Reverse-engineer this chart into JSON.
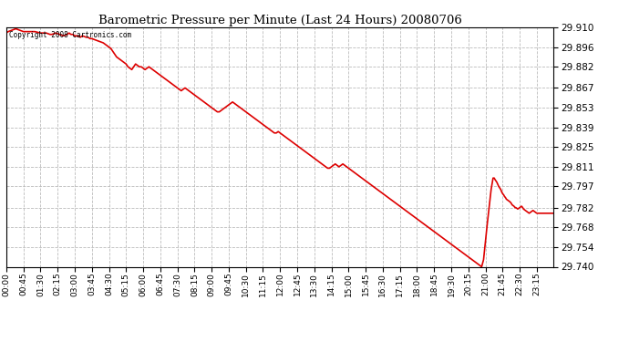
{
  "title": "Barometric Pressure per Minute (Last 24 Hours) 20080706",
  "copyright_text": "Copyright 2008 Cartronics.com",
  "line_color": "#dd0000",
  "background_color": "#ffffff",
  "grid_color": "#bbbbbb",
  "ylim": [
    29.74,
    29.91
  ],
  "yticks": [
    29.91,
    29.896,
    29.882,
    29.867,
    29.853,
    29.839,
    29.825,
    29.811,
    29.797,
    29.782,
    29.768,
    29.754,
    29.74
  ],
  "xtick_labels": [
    "00:00",
    "00:45",
    "01:30",
    "02:15",
    "03:00",
    "03:45",
    "04:30",
    "05:15",
    "06:00",
    "06:45",
    "07:30",
    "08:15",
    "09:00",
    "09:45",
    "10:30",
    "11:15",
    "12:00",
    "12:45",
    "13:30",
    "14:15",
    "15:00",
    "15:45",
    "16:30",
    "17:15",
    "18:00",
    "18:45",
    "19:30",
    "20:15",
    "21:00",
    "21:45",
    "22:30",
    "23:15"
  ],
  "x_values": [
    0,
    45,
    90,
    135,
    180,
    225,
    270,
    315,
    360,
    405,
    450,
    495,
    540,
    585,
    630,
    675,
    720,
    765,
    810,
    855,
    900,
    945,
    990,
    1035,
    1080,
    1125,
    1170,
    1215,
    1260,
    1305,
    1350,
    1395
  ],
  "pressure_data": [
    [
      0,
      29.906
    ],
    [
      5,
      29.907
    ],
    [
      15,
      29.908
    ],
    [
      25,
      29.909
    ],
    [
      35,
      29.908
    ],
    [
      45,
      29.907
    ],
    [
      60,
      29.907
    ],
    [
      75,
      29.907
    ],
    [
      90,
      29.906
    ],
    [
      105,
      29.906
    ],
    [
      115,
      29.905
    ],
    [
      120,
      29.905
    ],
    [
      130,
      29.906
    ],
    [
      140,
      29.905
    ],
    [
      150,
      29.904
    ],
    [
      160,
      29.905
    ],
    [
      165,
      29.906
    ],
    [
      170,
      29.905
    ],
    [
      175,
      29.905
    ],
    [
      180,
      29.904
    ],
    [
      185,
      29.904
    ],
    [
      195,
      29.903
    ],
    [
      200,
      29.904
    ],
    [
      210,
      29.903
    ],
    [
      215,
      29.903
    ],
    [
      220,
      29.902
    ],
    [
      225,
      29.902
    ],
    [
      235,
      29.901
    ],
    [
      245,
      29.9
    ],
    [
      255,
      29.899
    ],
    [
      260,
      29.898
    ],
    [
      265,
      29.897
    ],
    [
      270,
      29.896
    ],
    [
      275,
      29.895
    ],
    [
      280,
      29.893
    ],
    [
      285,
      29.891
    ],
    [
      290,
      29.889
    ],
    [
      300,
      29.887
    ],
    [
      305,
      29.886
    ],
    [
      310,
      29.885
    ],
    [
      315,
      29.884
    ],
    [
      320,
      29.882
    ],
    [
      325,
      29.881
    ],
    [
      330,
      29.88
    ],
    [
      335,
      29.882
    ],
    [
      340,
      29.884
    ],
    [
      345,
      29.883
    ],
    [
      350,
      29.882
    ],
    [
      355,
      29.882
    ],
    [
      360,
      29.881
    ],
    [
      365,
      29.88
    ],
    [
      370,
      29.881
    ],
    [
      375,
      29.882
    ],
    [
      380,
      29.881
    ],
    [
      385,
      29.88
    ],
    [
      390,
      29.879
    ],
    [
      395,
      29.878
    ],
    [
      400,
      29.877
    ],
    [
      405,
      29.876
    ],
    [
      410,
      29.875
    ],
    [
      415,
      29.874
    ],
    [
      420,
      29.873
    ],
    [
      425,
      29.872
    ],
    [
      430,
      29.871
    ],
    [
      435,
      29.87
    ],
    [
      440,
      29.869
    ],
    [
      445,
      29.868
    ],
    [
      450,
      29.867
    ],
    [
      455,
      29.866
    ],
    [
      460,
      29.865
    ],
    [
      465,
      29.866
    ],
    [
      470,
      29.867
    ],
    [
      475,
      29.866
    ],
    [
      480,
      29.865
    ],
    [
      485,
      29.864
    ],
    [
      490,
      29.863
    ],
    [
      495,
      29.862
    ],
    [
      500,
      29.861
    ],
    [
      505,
      29.86
    ],
    [
      510,
      29.859
    ],
    [
      515,
      29.858
    ],
    [
      520,
      29.857
    ],
    [
      525,
      29.856
    ],
    [
      530,
      29.855
    ],
    [
      535,
      29.854
    ],
    [
      540,
      29.853
    ],
    [
      545,
      29.852
    ],
    [
      550,
      29.851
    ],
    [
      555,
      29.85
    ],
    [
      560,
      29.85
    ],
    [
      565,
      29.851
    ],
    [
      570,
      29.852
    ],
    [
      575,
      29.853
    ],
    [
      580,
      29.854
    ],
    [
      585,
      29.855
    ],
    [
      590,
      29.856
    ],
    [
      595,
      29.857
    ],
    [
      600,
      29.856
    ],
    [
      605,
      29.855
    ],
    [
      610,
      29.854
    ],
    [
      615,
      29.853
    ],
    [
      620,
      29.852
    ],
    [
      625,
      29.851
    ],
    [
      630,
      29.85
    ],
    [
      635,
      29.849
    ],
    [
      640,
      29.848
    ],
    [
      645,
      29.847
    ],
    [
      650,
      29.846
    ],
    [
      655,
      29.845
    ],
    [
      660,
      29.844
    ],
    [
      665,
      29.843
    ],
    [
      670,
      29.842
    ],
    [
      675,
      29.841
    ],
    [
      680,
      29.84
    ],
    [
      685,
      29.839
    ],
    [
      690,
      29.838
    ],
    [
      695,
      29.837
    ],
    [
      700,
      29.836
    ],
    [
      705,
      29.835
    ],
    [
      710,
      29.835
    ],
    [
      715,
      29.836
    ],
    [
      720,
      29.835
    ],
    [
      725,
      29.834
    ],
    [
      730,
      29.833
    ],
    [
      735,
      29.832
    ],
    [
      740,
      29.831
    ],
    [
      745,
      29.83
    ],
    [
      750,
      29.829
    ],
    [
      755,
      29.828
    ],
    [
      760,
      29.827
    ],
    [
      765,
      29.826
    ],
    [
      770,
      29.825
    ],
    [
      775,
      29.824
    ],
    [
      780,
      29.823
    ],
    [
      785,
      29.822
    ],
    [
      790,
      29.821
    ],
    [
      795,
      29.82
    ],
    [
      800,
      29.819
    ],
    [
      805,
      29.818
    ],
    [
      810,
      29.817
    ],
    [
      815,
      29.816
    ],
    [
      820,
      29.815
    ],
    [
      825,
      29.814
    ],
    [
      830,
      29.813
    ],
    [
      835,
      29.812
    ],
    [
      840,
      29.811
    ],
    [
      845,
      29.81
    ],
    [
      850,
      29.81
    ],
    [
      855,
      29.811
    ],
    [
      860,
      29.812
    ],
    [
      865,
      29.813
    ],
    [
      870,
      29.812
    ],
    [
      875,
      29.811
    ],
    [
      880,
      29.812
    ],
    [
      885,
      29.813
    ],
    [
      890,
      29.812
    ],
    [
      895,
      29.811
    ],
    [
      900,
      29.81
    ],
    [
      905,
      29.809
    ],
    [
      910,
      29.808
    ],
    [
      915,
      29.807
    ],
    [
      920,
      29.806
    ],
    [
      925,
      29.805
    ],
    [
      930,
      29.804
    ],
    [
      935,
      29.803
    ],
    [
      940,
      29.802
    ],
    [
      945,
      29.801
    ],
    [
      950,
      29.8
    ],
    [
      955,
      29.799
    ],
    [
      960,
      29.798
    ],
    [
      965,
      29.797
    ],
    [
      970,
      29.796
    ],
    [
      975,
      29.795
    ],
    [
      980,
      29.794
    ],
    [
      985,
      29.793
    ],
    [
      990,
      29.792
    ],
    [
      995,
      29.791
    ],
    [
      1000,
      29.79
    ],
    [
      1005,
      29.789
    ],
    [
      1010,
      29.788
    ],
    [
      1015,
      29.787
    ],
    [
      1020,
      29.786
    ],
    [
      1025,
      29.785
    ],
    [
      1030,
      29.784
    ],
    [
      1035,
      29.783
    ],
    [
      1040,
      29.782
    ],
    [
      1045,
      29.781
    ],
    [
      1050,
      29.78
    ],
    [
      1055,
      29.779
    ],
    [
      1060,
      29.778
    ],
    [
      1065,
      29.777
    ],
    [
      1070,
      29.776
    ],
    [
      1075,
      29.775
    ],
    [
      1080,
      29.774
    ],
    [
      1085,
      29.773
    ],
    [
      1090,
      29.772
    ],
    [
      1095,
      29.771
    ],
    [
      1100,
      29.77
    ],
    [
      1105,
      29.769
    ],
    [
      1110,
      29.768
    ],
    [
      1115,
      29.767
    ],
    [
      1120,
      29.766
    ],
    [
      1125,
      29.765
    ],
    [
      1130,
      29.764
    ],
    [
      1135,
      29.763
    ],
    [
      1140,
      29.762
    ],
    [
      1145,
      29.761
    ],
    [
      1150,
      29.76
    ],
    [
      1155,
      29.759
    ],
    [
      1160,
      29.758
    ],
    [
      1165,
      29.757
    ],
    [
      1170,
      29.756
    ],
    [
      1175,
      29.755
    ],
    [
      1180,
      29.754
    ],
    [
      1185,
      29.753
    ],
    [
      1190,
      29.752
    ],
    [
      1195,
      29.751
    ],
    [
      1200,
      29.75
    ],
    [
      1205,
      29.749
    ],
    [
      1210,
      29.748
    ],
    [
      1215,
      29.747
    ],
    [
      1220,
      29.746
    ],
    [
      1225,
      29.745
    ],
    [
      1230,
      29.744
    ],
    [
      1235,
      29.743
    ],
    [
      1240,
      29.742
    ],
    [
      1245,
      29.741
    ],
    [
      1250,
      29.74
    ],
    [
      1255,
      29.745
    ],
    [
      1260,
      29.758
    ],
    [
      1265,
      29.771
    ],
    [
      1270,
      29.783
    ],
    [
      1273,
      29.79
    ],
    [
      1275,
      29.795
    ],
    [
      1278,
      29.8
    ],
    [
      1280,
      29.803
    ],
    [
      1283,
      29.803
    ],
    [
      1285,
      29.802
    ],
    [
      1290,
      29.8
    ],
    [
      1295,
      29.797
    ],
    [
      1300,
      29.795
    ],
    [
      1303,
      29.793
    ],
    [
      1305,
      29.792
    ],
    [
      1308,
      29.791
    ],
    [
      1310,
      29.79
    ],
    [
      1313,
      29.789
    ],
    [
      1315,
      29.788
    ],
    [
      1320,
      29.787
    ],
    [
      1325,
      29.786
    ],
    [
      1328,
      29.785
    ],
    [
      1330,
      29.784
    ],
    [
      1335,
      29.783
    ],
    [
      1338,
      29.782
    ],
    [
      1340,
      29.782
    ],
    [
      1345,
      29.781
    ],
    [
      1350,
      29.782
    ],
    [
      1355,
      29.783
    ],
    [
      1358,
      29.782
    ],
    [
      1360,
      29.781
    ],
    [
      1365,
      29.78
    ],
    [
      1370,
      29.779
    ],
    [
      1375,
      29.778
    ],
    [
      1380,
      29.779
    ],
    [
      1385,
      29.78
    ],
    [
      1390,
      29.779
    ],
    [
      1395,
      29.778
    ],
    [
      1439,
      29.778
    ]
  ]
}
